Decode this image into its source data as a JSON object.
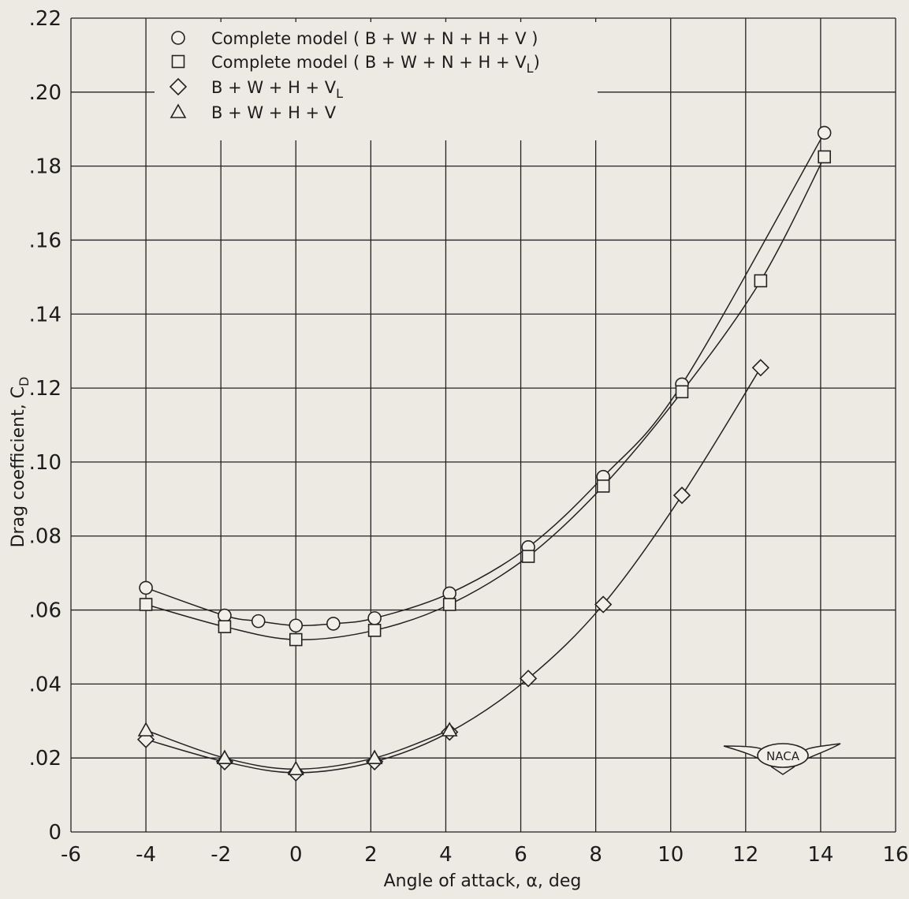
{
  "chart_data": {
    "type": "line",
    "title": "",
    "xlabel": "Angle of attack, α, deg",
    "ylabel": "Drag coefficient, C",
    "ylabel_subscript": "D",
    "xlim": [
      -6,
      16
    ],
    "ylim": [
      0,
      0.22
    ],
    "x_ticks": [
      -6,
      -4,
      -2,
      0,
      2,
      4,
      6,
      8,
      10,
      12,
      14,
      16
    ],
    "x_tick_labels": [
      "-6",
      "-4",
      "-2",
      "0",
      "2",
      "4",
      "6",
      "8",
      "10",
      "12",
      "14",
      "16"
    ],
    "y_ticks": [
      0,
      0.02,
      0.04,
      0.06,
      0.08,
      0.1,
      0.12,
      0.14,
      0.16,
      0.18,
      0.2,
      0.22
    ],
    "y_tick_labels": [
      "0",
      ".02",
      ".04",
      ".06",
      ".08",
      ".10",
      ".12",
      ".14",
      ".16",
      ".18",
      ".20",
      ".22"
    ],
    "grid": true,
    "legend_position": "top-left",
    "series": [
      {
        "name": "Complete model ( B + W + N + H + V )",
        "marker": "circle",
        "x": [
          -4.0,
          -1.9,
          -1.0,
          0.0,
          1.0,
          2.1,
          4.1,
          6.2,
          8.2,
          10.3,
          14.1
        ],
        "y": [
          0.066,
          0.0585,
          0.057,
          0.0558,
          0.0563,
          0.0578,
          0.0645,
          0.077,
          0.096,
          0.121,
          0.189
        ]
      },
      {
        "name": "Complete model ( B + W + N + H + V",
        "name_subscript": "L",
        "name_suffix": ")",
        "marker": "square",
        "x": [
          -4.0,
          -1.9,
          0.0,
          2.1,
          4.1,
          6.2,
          8.2,
          10.3,
          12.4,
          14.1
        ],
        "y": [
          0.0615,
          0.0555,
          0.052,
          0.0545,
          0.0615,
          0.0745,
          0.0935,
          0.119,
          0.149,
          0.1825
        ]
      },
      {
        "name": "B + W + H + V",
        "name_subscript": "L",
        "marker": "diamond",
        "x": [
          -4.0,
          -1.9,
          0.0,
          2.1,
          4.1,
          6.2,
          8.2,
          10.3,
          12.4
        ],
        "y": [
          0.025,
          0.019,
          0.016,
          0.019,
          0.027,
          0.0415,
          0.0615,
          0.091,
          0.1255
        ]
      },
      {
        "name": "B + W + H + V",
        "marker": "triangle",
        "x": [
          -4.0,
          -1.9,
          0.0,
          2.1,
          4.1
        ],
        "y": [
          0.0275,
          0.02,
          0.017,
          0.02,
          0.0275
        ]
      }
    ]
  },
  "logo": {
    "text": "NACA"
  }
}
